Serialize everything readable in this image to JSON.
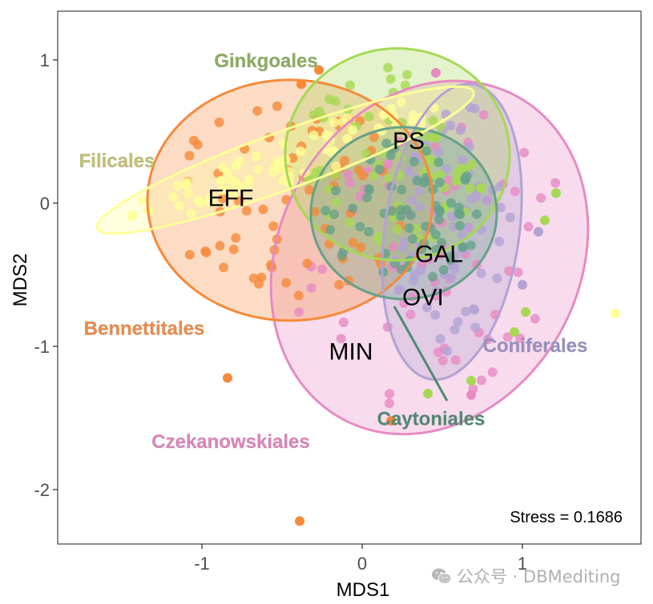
{
  "chart_data": {
    "type": "scatter",
    "subtype": "NMDS ordination with group ellipses",
    "title": "",
    "xlabel": "MDS1",
    "ylabel": "MDS2",
    "xlim": [
      -1.9,
      1.74
    ],
    "ylim": [
      -2.38,
      1.34
    ],
    "x_ticks": [
      -1,
      0,
      1
    ],
    "y_ticks": [
      1,
      0,
      -1,
      -2
    ],
    "x_tick_labels": [
      "-1",
      "0",
      "1"
    ],
    "y_tick_labels": [
      "1",
      "0",
      "-1",
      "-2"
    ],
    "grid": false,
    "legend": "none (direct group labels)",
    "stress_annotation": "Stress = 0.1686",
    "groups": [
      {
        "name": "Bennettitales",
        "color": "#F58A3A",
        "label_color": "#F08A45",
        "ellipse": {
          "cx": -0.45,
          "cy": 0.02,
          "rx": 0.89,
          "ry": 0.84,
          "angle": 0
        },
        "label_at": [
          -1.36,
          -0.87
        ]
      },
      {
        "name": "Filicales",
        "color": "#FFFF99",
        "label_color": "#C2C270",
        "ellipse": {
          "cx": -0.48,
          "cy": 0.3,
          "rx": 1.25,
          "ry": 0.2,
          "angle": 20
        },
        "label_at": [
          -1.53,
          0.3
        ]
      },
      {
        "name": "Ginkgoales",
        "color": "#A6D854",
        "label_color": "#8DAE5E",
        "ellipse": {
          "cx": 0.22,
          "cy": 0.34,
          "rx": 0.7,
          "ry": 0.74,
          "angle": 0
        },
        "label_at": [
          -0.6,
          1.0
        ]
      },
      {
        "name": "Czekanowskiales",
        "color": "#E78AC3",
        "label_color": "#E084BD",
        "ellipse": {
          "cx": 0.42,
          "cy": -0.38,
          "rx": 0.94,
          "ry": 1.28,
          "angle": -28
        },
        "label_at": [
          -0.82,
          -1.66
        ]
      },
      {
        "name": "Coniferales",
        "color": "#B3A2D3",
        "label_color": "#9A8FC2",
        "ellipse": {
          "cx": 0.56,
          "cy": -0.2,
          "rx": 0.42,
          "ry": 1.04,
          "angle": -8
        },
        "label_at": [
          1.08,
          -0.99
        ]
      },
      {
        "name": "Caytoniales",
        "color": "#66A18A",
        "label_color": "#4E8A72",
        "ellipse": {
          "cx": 0.26,
          "cy": -0.07,
          "rx": 0.58,
          "ry": 0.6,
          "angle": 0
        },
        "label_at": [
          0.43,
          -1.5
        ],
        "leader_from": [
          0.2,
          -0.72
        ],
        "leader_to": [
          0.53,
          -1.38
        ]
      }
    ],
    "variable_labels": [
      {
        "text": "EFF",
        "at": [
          -0.82,
          0.04
        ]
      },
      {
        "text": "PS",
        "at": [
          0.29,
          0.44
        ]
      },
      {
        "text": "GAL",
        "at": [
          0.48,
          -0.35
        ]
      },
      {
        "text": "OVI",
        "at": [
          0.38,
          -0.65
        ]
      },
      {
        "text": "MIN",
        "at": [
          -0.07,
          -1.03
        ]
      }
    ],
    "notable_points": [
      {
        "group": "Bennettitales",
        "x": -0.39,
        "y": -2.22
      },
      {
        "group": "Bennettitales",
        "x": -0.84,
        "y": -1.22
      },
      {
        "group": "Bennettitales",
        "x": 0.18,
        "y": -1.52
      },
      {
        "group": "Bennettitales",
        "x": -0.38,
        "y": 0.83
      },
      {
        "group": "Bennettitales",
        "x": -0.27,
        "y": 0.93
      },
      {
        "group": "Filicales",
        "x": 1.58,
        "y": -0.77
      },
      {
        "group": "Ginkgoales",
        "x": 1.21,
        "y": 0.07
      },
      {
        "group": "Ginkgoales",
        "x": 1.14,
        "y": -0.12
      },
      {
        "group": "Ginkgoales",
        "x": 1.02,
        "y": -0.76
      },
      {
        "group": "Ginkgoales",
        "x": 0.95,
        "y": -0.9
      },
      {
        "group": "Ginkgoales",
        "x": 0.68,
        "y": -1.24
      },
      {
        "group": "Ginkgoales",
        "x": 0.41,
        "y": -1.33
      },
      {
        "group": "Czekanowskiales",
        "x": 0.68,
        "y": -1.34
      },
      {
        "group": "Czekanowskiales",
        "x": 0.46,
        "y": 0.91
      },
      {
        "group": "Coniferales",
        "x": 1.1,
        "y": -0.2
      },
      {
        "group": "Coniferales",
        "x": 1.0,
        "y": -0.57
      }
    ]
  },
  "watermark": {
    "icon": "wechat-icon",
    "text": "公众号 · DBMediting"
  }
}
